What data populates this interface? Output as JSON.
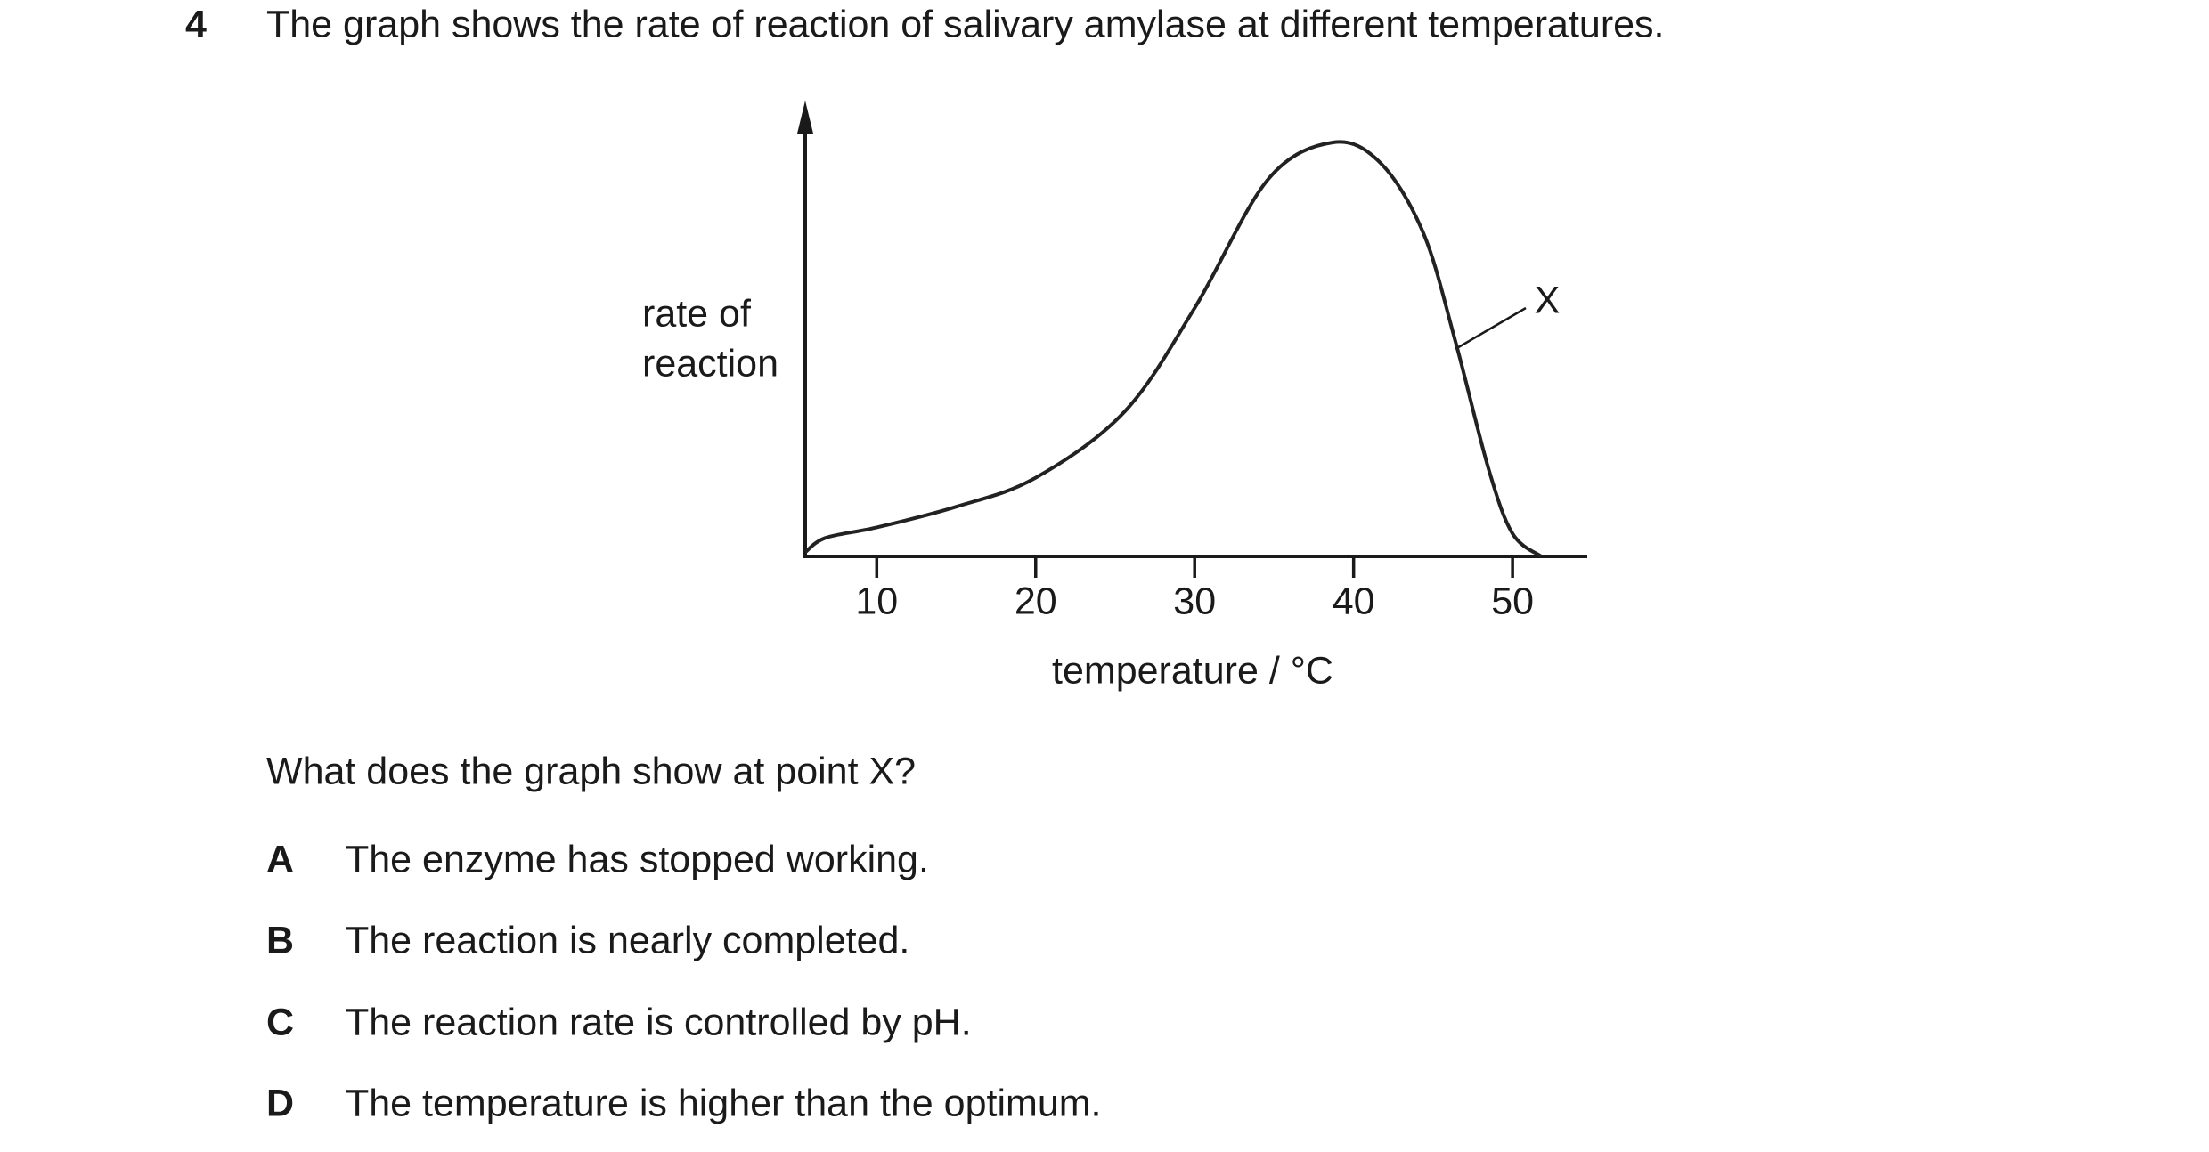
{
  "question": {
    "number": "4",
    "stem": "The graph shows the rate of reaction of salivary amylase at different temperatures."
  },
  "chart_data": {
    "type": "line",
    "y_label": [
      "rate of",
      "reaction"
    ],
    "x_label": "temperature / °C",
    "annotation": "X",
    "x": [
      5.5,
      6.8,
      10,
      15,
      20,
      25.6,
      30,
      34.6,
      38.7,
      41.7,
      44.4,
      46.4,
      48.5,
      50,
      51.8
    ],
    "series": [
      {
        "color": "#222222",
        "values": [
          1,
          4.5,
          7,
          12,
          19,
          35,
          60,
          91,
          100,
          95,
          78,
          52,
          21,
          5.5,
          0
        ]
      }
    ],
    "xlim": [
      5.5,
      54.7
    ],
    "xticks": [
      10,
      20,
      30,
      40,
      50
    ],
    "ylim": [
      0,
      100
    ]
  },
  "prompt": "What does the graph show at point X?",
  "options": [
    {
      "letter": "A",
      "text": "The enzyme has stopped working."
    },
    {
      "letter": "B",
      "text": "The reaction is nearly completed."
    },
    {
      "letter": "C",
      "text": "The reaction rate is controlled by pH."
    },
    {
      "letter": "D",
      "text": "The temperature is higher than the optimum."
    }
  ]
}
